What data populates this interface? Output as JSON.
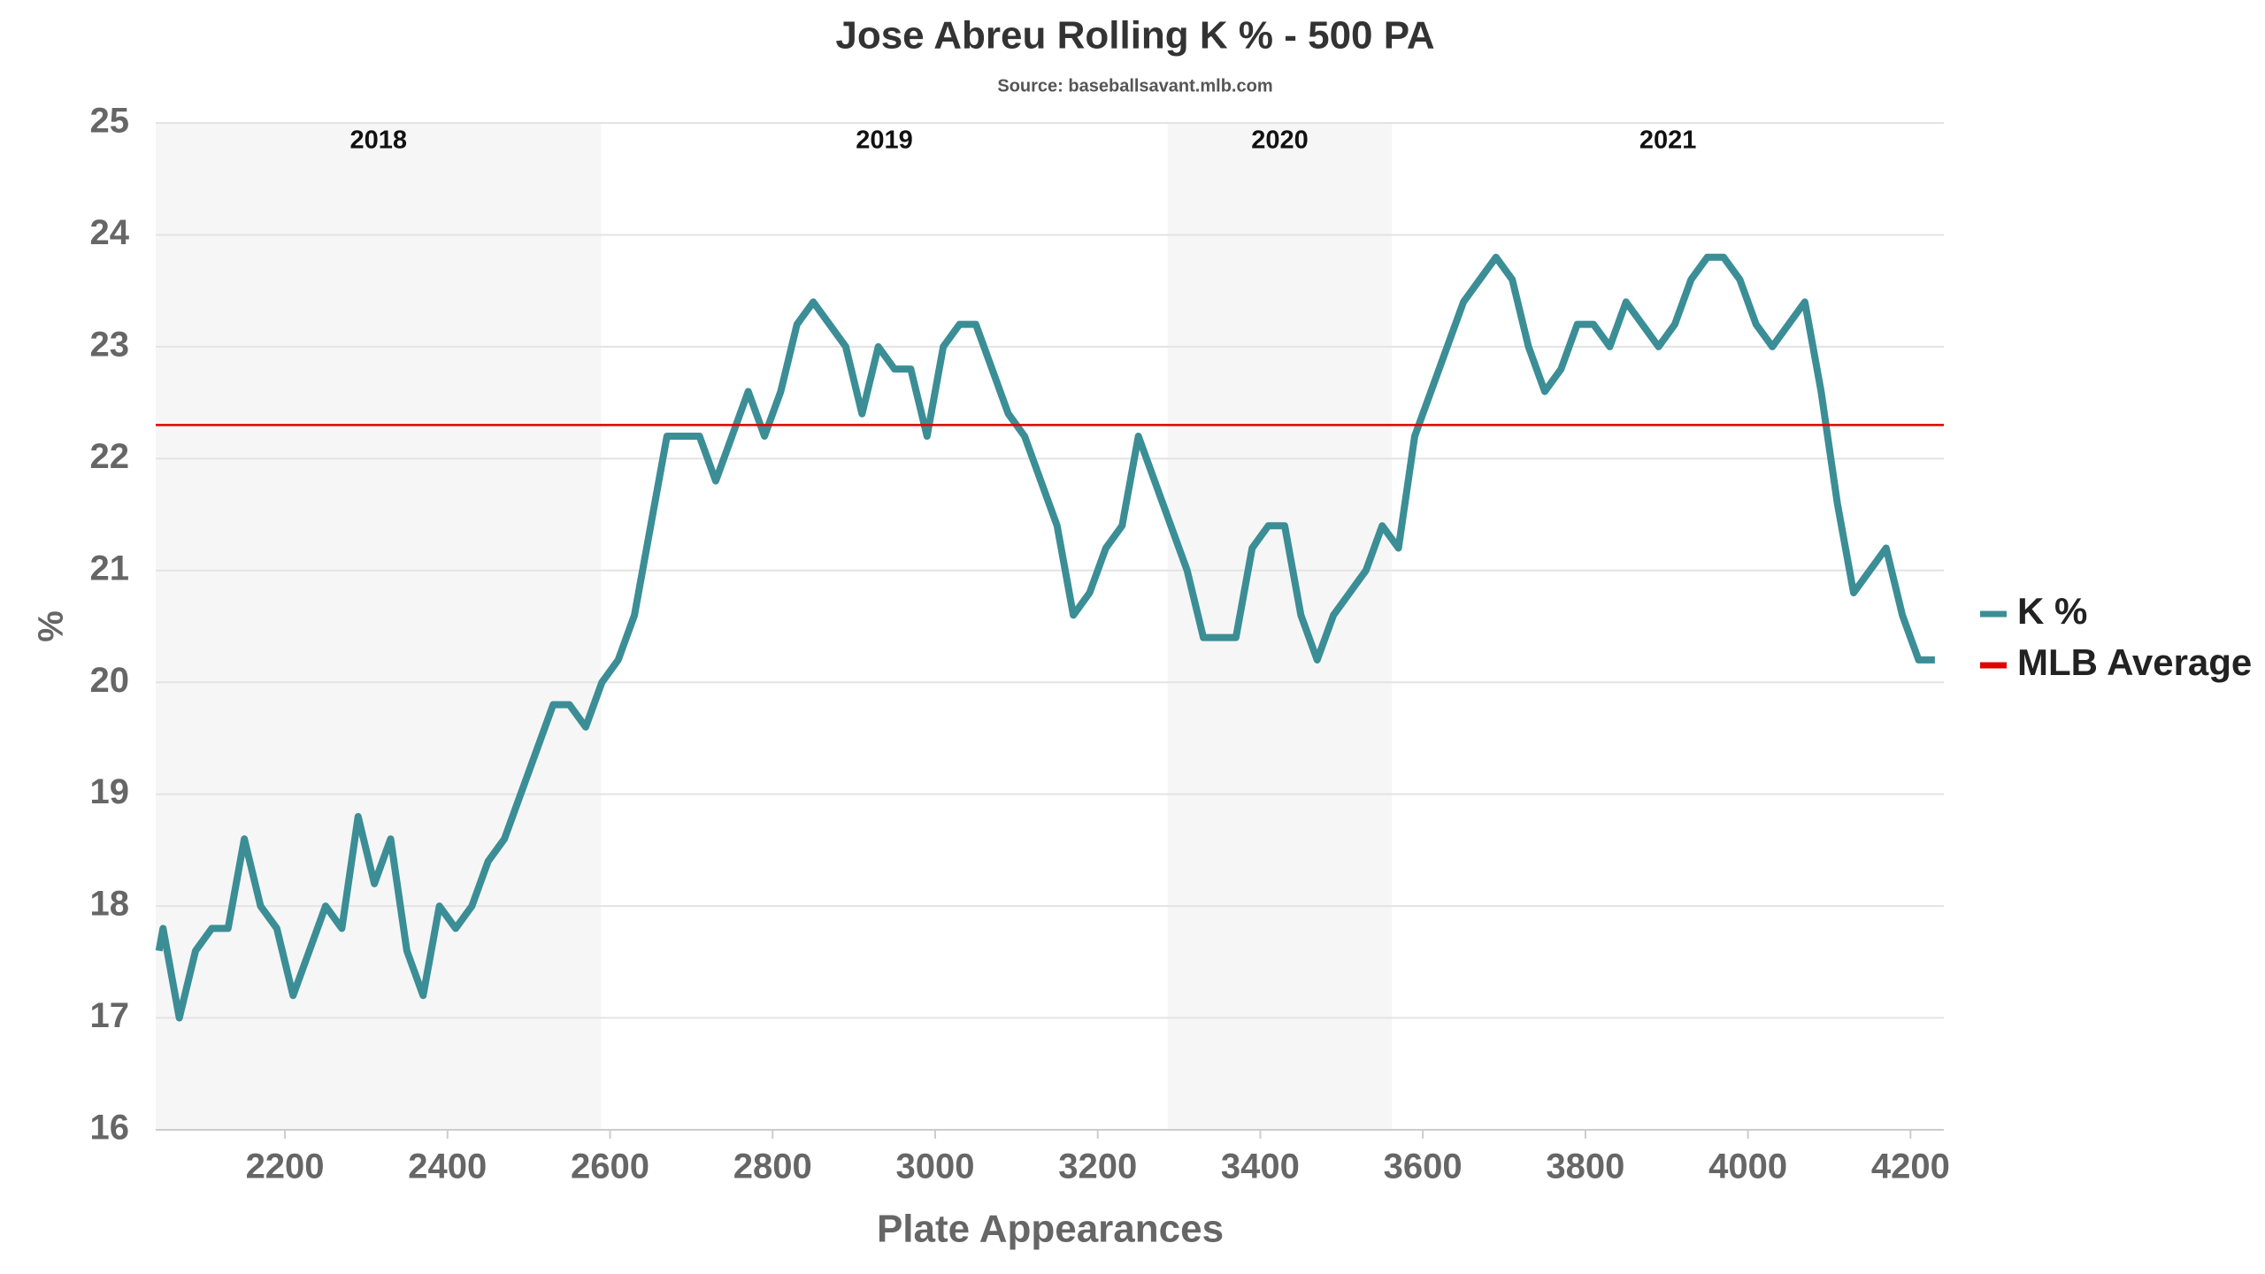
{
  "chart_data": {
    "type": "line",
    "title": "Jose Abreu Rolling K % - 500 PA",
    "subtitle": "Source: baseballsavant.mlb.com",
    "xlabel": "Plate Appearances",
    "ylabel": "%",
    "xlim": [
      2041,
      4241
    ],
    "ylim": [
      16,
      25
    ],
    "xticks": [
      2200,
      2400,
      2600,
      2800,
      3000,
      3200,
      3400,
      3600,
      3800,
      4000,
      4200
    ],
    "yticks": [
      16,
      17,
      18,
      19,
      20,
      21,
      22,
      23,
      24,
      25
    ],
    "grid": true,
    "legend": "right",
    "seasons": [
      {
        "label": "2018",
        "start": 2041,
        "end": 2589,
        "shaded": true
      },
      {
        "label": "2019",
        "start": 2589,
        "end": 3286,
        "shaded": false
      },
      {
        "label": "2020",
        "start": 3286,
        "end": 3562,
        "shaded": true
      },
      {
        "label": "2021",
        "start": 3562,
        "end": 4241,
        "shaded": false
      }
    ],
    "series": [
      {
        "name": "K %",
        "color": "#3b8e96",
        "x": [
          2045,
          2050,
          2070,
          2090,
          2110,
          2130,
          2150,
          2170,
          2190,
          2210,
          2230,
          2250,
          2270,
          2290,
          2310,
          2330,
          2350,
          2370,
          2390,
          2410,
          2430,
          2450,
          2470,
          2490,
          2510,
          2530,
          2550,
          2570,
          2590,
          2610,
          2630,
          2650,
          2670,
          2690,
          2710,
          2730,
          2750,
          2770,
          2790,
          2810,
          2830,
          2850,
          2870,
          2890,
          2910,
          2930,
          2950,
          2970,
          2990,
          3010,
          3030,
          3050,
          3070,
          3090,
          3110,
          3130,
          3150,
          3170,
          3190,
          3210,
          3230,
          3250,
          3270,
          3290,
          3310,
          3330,
          3350,
          3370,
          3390,
          3410,
          3430,
          3450,
          3470,
          3490,
          3510,
          3530,
          3550,
          3570,
          3590,
          3610,
          3630,
          3650,
          3670,
          3690,
          3710,
          3730,
          3750,
          3770,
          3790,
          3810,
          3830,
          3850,
          3870,
          3890,
          3910,
          3930,
          3950,
          3970,
          3990,
          4010,
          4030,
          4050,
          4070,
          4090,
          4110,
          4130,
          4150,
          4170,
          4190,
          4210,
          4230
        ],
        "values": [
          17.6,
          17.8,
          17.0,
          17.6,
          17.8,
          17.8,
          18.6,
          18.0,
          17.8,
          17.2,
          17.6,
          18.0,
          17.8,
          18.8,
          18.2,
          18.6,
          17.6,
          17.2,
          18.0,
          17.8,
          18.0,
          18.4,
          18.6,
          19.0,
          19.4,
          19.8,
          19.8,
          19.6,
          20.0,
          20.2,
          20.6,
          21.4,
          22.2,
          22.2,
          22.2,
          21.8,
          22.2,
          22.6,
          22.2,
          22.6,
          23.2,
          23.4,
          23.2,
          23.0,
          22.4,
          23.0,
          22.8,
          22.8,
          22.2,
          23.0,
          23.2,
          23.2,
          22.8,
          22.4,
          22.2,
          21.8,
          21.4,
          20.6,
          20.8,
          21.2,
          21.4,
          22.2,
          21.8,
          21.4,
          21.0,
          20.4,
          20.4,
          20.4,
          21.2,
          21.4,
          21.4,
          20.6,
          20.2,
          20.6,
          20.8,
          21.0,
          21.4,
          21.2,
          22.2,
          22.6,
          23.0,
          23.4,
          23.6,
          23.8,
          23.6,
          23.0,
          22.6,
          22.8,
          23.2,
          23.2,
          23.0,
          23.4,
          23.2,
          23.0,
          23.2,
          23.6,
          23.8,
          23.8,
          23.6,
          23.2,
          23.0,
          23.2,
          23.4,
          22.6,
          21.6,
          20.8,
          21.0,
          21.2,
          20.6,
          20.2,
          20.2
        ]
      },
      {
        "name": "MLB Average",
        "color": "#e00000",
        "x": [
          2041,
          4241
        ],
        "values": [
          22.3,
          22.3
        ]
      }
    ]
  }
}
